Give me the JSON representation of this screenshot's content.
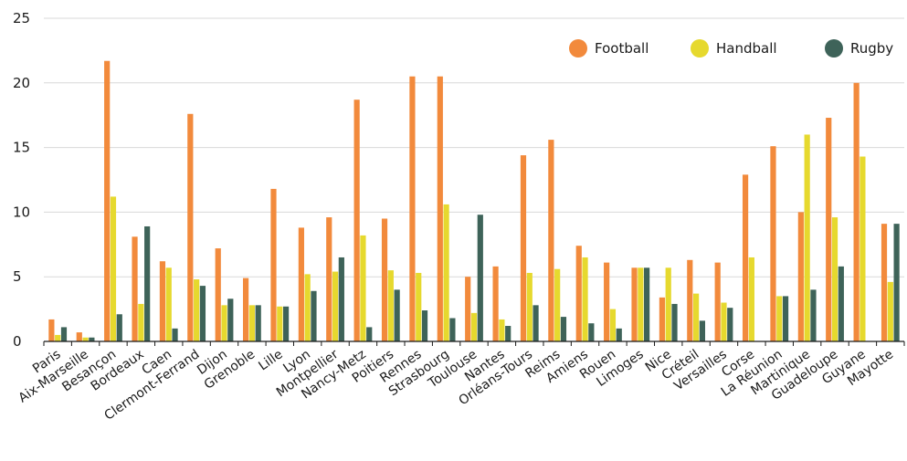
{
  "chart_data": {
    "type": "bar",
    "title": "",
    "xlabel": "",
    "ylabel": "",
    "ylim": [
      0,
      25
    ],
    "yticks": [
      0,
      5,
      10,
      15,
      20,
      25
    ],
    "grid": "horizontal",
    "legend_position": "top-right",
    "categories": [
      "Paris",
      "Aix-Marseille",
      "Besançon",
      "Bordeaux",
      "Caen",
      "Clermont-Ferrand",
      "Dijon",
      "Grenoble",
      "Lille",
      "Lyon",
      "Montpellier",
      "Nancy-Metz",
      "Poitiers",
      "Rennes",
      "Strasbourg",
      "Toulouse",
      "Nantes",
      "Orléans-Tours",
      "Reims",
      "Amiens",
      "Rouen",
      "Limoges",
      "Nice",
      "Créteil",
      "Versailles",
      "Corse",
      "La Réunion",
      "Martinique",
      "Guadeloupe",
      "Guyane",
      "Mayotte"
    ],
    "series": [
      {
        "name": "Football",
        "color": "#f28a3c",
        "values": [
          1.7,
          0.7,
          21.7,
          8.1,
          6.2,
          17.6,
          7.2,
          4.9,
          11.8,
          8.8,
          9.6,
          18.7,
          9.5,
          20.5,
          20.5,
          5.0,
          5.8,
          14.4,
          15.6,
          7.4,
          6.1,
          5.7,
          3.4,
          6.3,
          6.1,
          12.9,
          15.1,
          10.0,
          17.3,
          20.0,
          9.1
        ]
      },
      {
        "name": "Handball",
        "color": "#e6d92e",
        "values": [
          0.5,
          0.3,
          11.2,
          2.9,
          5.7,
          4.8,
          2.8,
          2.8,
          2.7,
          5.2,
          5.4,
          8.2,
          5.5,
          5.3,
          10.6,
          2.2,
          1.7,
          5.3,
          5.6,
          6.5,
          2.5,
          5.7,
          5.7,
          3.7,
          3.0,
          6.5,
          3.5,
          16.0,
          9.6,
          14.3,
          4.6
        ]
      },
      {
        "name": "Rugby",
        "color": "#3e6359",
        "values": [
          1.1,
          0.3,
          2.1,
          8.9,
          1.0,
          4.3,
          3.3,
          2.8,
          2.7,
          3.9,
          6.5,
          1.1,
          4.0,
          2.4,
          1.8,
          9.8,
          1.2,
          2.8,
          1.9,
          1.4,
          1.0,
          5.7,
          2.9,
          1.6,
          2.6,
          0,
          3.5,
          4.0,
          5.8,
          0,
          9.1
        ]
      }
    ]
  }
}
